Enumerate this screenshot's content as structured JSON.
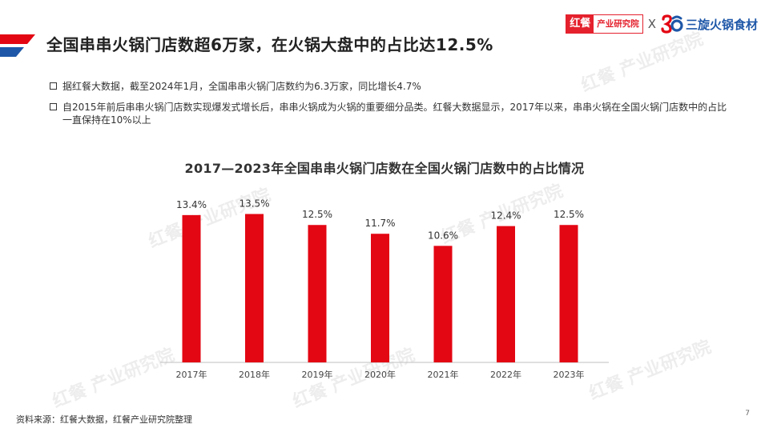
{
  "header": {
    "title": "全国串串火锅门店数超6万家，在火锅大盘中的占比达12.5%",
    "logos": {
      "hongcan_mark": "红餐",
      "hongcan_text": "产业研究院",
      "separator": "X",
      "sanxuan_text": "三旋火锅食材"
    }
  },
  "bullets": [
    "据红餐大数据，截至2024年1月，全国串串火锅门店数约为6.3万家，同比增长4.7%",
    "自2015年前后串串火锅门店数实现爆发式增长后，串串火锅成为火锅的重要细分品类。红餐大数据显示，2017年以来，串串火锅在全国火锅门店数中的占比一直保持在10%以上"
  ],
  "chart_data": {
    "type": "bar",
    "title": "2017—2023年全国串串火锅门店数在全国火锅门店数中的占比情况",
    "categories": [
      "2017年",
      "2018年",
      "2019年",
      "2020年",
      "2021年",
      "2022年",
      "2023年"
    ],
    "values": [
      13.4,
      13.5,
      12.5,
      11.7,
      10.6,
      12.4,
      12.5
    ],
    "value_labels": [
      "13.4%",
      "13.5%",
      "12.5%",
      "11.7%",
      "10.6%",
      "12.4%",
      "12.5%"
    ],
    "xlabel": "",
    "ylabel": "",
    "ylim": [
      0,
      15.5
    ],
    "grid": false,
    "bar_color": "#e30613"
  },
  "watermark_text": "红餐 产业研究院",
  "footer": {
    "source": "资料来源：红餐大数据，红餐产业研究院整理",
    "page_number": "7"
  },
  "colors": {
    "accent_red": "#e30613",
    "brand_blue": "#1e57a8"
  }
}
